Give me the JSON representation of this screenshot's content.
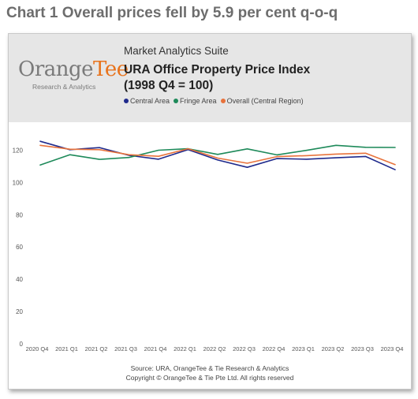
{
  "page_title": "Chart 1 Overall prices fell by 5.9 per cent q-o-q",
  "header": {
    "suite": "Market Analytics Suite",
    "logo_main": "Orange",
    "logo_accent": "Tee",
    "logo_sub": "Research & Analytics",
    "title_line1": "URA Office Property Price Index",
    "title_line2": "(1998 Q4 = 100)"
  },
  "footer": {
    "source": "Source: URA, OrangeTee & Tie Research & Analytics",
    "copyright": "Copyright © OrangeTee & Tie Pte Ltd. All rights reserved"
  },
  "chart_data": {
    "type": "line",
    "title": "URA Office Property Price Index",
    "subtitle": "(1998 Q4 = 100)",
    "xlabel": "",
    "ylabel": "",
    "ylim": [
      0,
      130
    ],
    "yticks": [
      0,
      20,
      40,
      60,
      80,
      100,
      120
    ],
    "grid": false,
    "legend_position": "top",
    "x": [
      "2020 Q4",
      "2021 Q1",
      "2021 Q2",
      "2021 Q3",
      "2021 Q4",
      "2022 Q1",
      "2022 Q2",
      "2022 Q3",
      "2022 Q4",
      "2023 Q1",
      "2023 Q2",
      "2023 Q3",
      "2023 Q4"
    ],
    "series": [
      {
        "name": "Central Area",
        "color": "#1f2a8c",
        "values": [
          125.5,
          120.3,
          121.6,
          116.8,
          114.4,
          120.3,
          113.9,
          109.4,
          114.8,
          114.4,
          115.3,
          116.1,
          107.9
        ]
      },
      {
        "name": "Fringe Area",
        "color": "#1e8a5a",
        "values": [
          110.8,
          117.2,
          114.3,
          115.5,
          120.0,
          120.9,
          117.4,
          120.8,
          117.1,
          119.9,
          123.0,
          121.8,
          121.7
        ]
      },
      {
        "name": "Overall (Central Region)",
        "color": "#e8733c",
        "values": [
          123.0,
          120.6,
          120.3,
          117.2,
          116.2,
          120.9,
          115.1,
          111.9,
          116.0,
          116.6,
          117.6,
          118.1,
          111.1
        ]
      }
    ]
  }
}
